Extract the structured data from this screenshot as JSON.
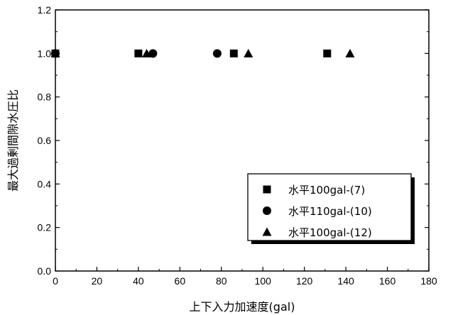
{
  "chart_data": {
    "type": "scatter",
    "title": "",
    "xlabel": "上下入力加速度(gal)",
    "ylabel": "最大過剰間隙水圧比",
    "xlim": [
      0,
      180
    ],
    "ylim": [
      0.0,
      1.2
    ],
    "xticks": [
      0,
      20,
      40,
      60,
      80,
      100,
      120,
      140,
      160,
      180
    ],
    "yticks": [
      "0.0",
      "0.2",
      "0.4",
      "0.6",
      "0.8",
      "1.0",
      "1.2"
    ],
    "grid": false,
    "legend_position": "bottom-right",
    "series": [
      {
        "name": "水平100gal-(7)",
        "marker": "square",
        "color": "#000000",
        "points": [
          {
            "x": 0,
            "y": 1.0
          },
          {
            "x": 40,
            "y": 1.0
          },
          {
            "x": 86,
            "y": 1.0
          },
          {
            "x": 131,
            "y": 1.0
          }
        ]
      },
      {
        "name": "水平110gal-(10)",
        "marker": "circle",
        "color": "#000000",
        "points": [
          {
            "x": 0,
            "y": 1.0
          },
          {
            "x": 47,
            "y": 1.0
          },
          {
            "x": 78,
            "y": 1.0
          }
        ]
      },
      {
        "name": "水平100gal-(12)",
        "marker": "triangle",
        "color": "#000000",
        "points": [
          {
            "x": 0,
            "y": 1.0
          },
          {
            "x": 44,
            "y": 1.0
          },
          {
            "x": 93,
            "y": 1.0
          },
          {
            "x": 142,
            "y": 1.0
          }
        ]
      }
    ]
  }
}
